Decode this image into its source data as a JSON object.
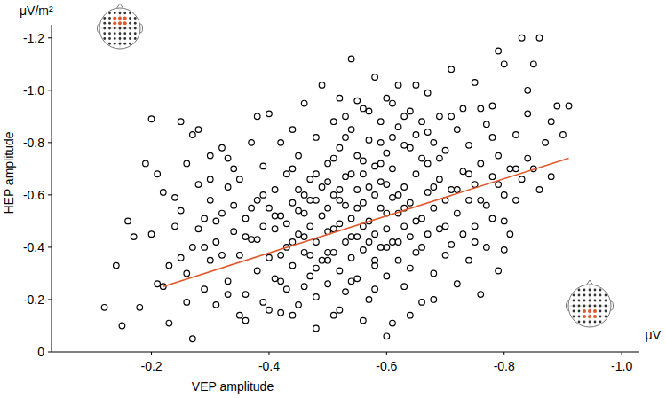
{
  "chart_data": {
    "type": "scatter",
    "x_label": "VEP amplitude",
    "y_label": "HEP amplitude",
    "x_unit": "μV",
    "y_unit": "μV/m²",
    "xlim": [
      -0.03,
      -1.03
    ],
    "ylim": [
      0,
      -1.25
    ],
    "xticks": [
      -0.2,
      -0.4,
      -0.6,
      -0.8,
      {
        "value": -1,
        "label": "-1.0"
      }
    ],
    "yticks": [
      0,
      -0.2,
      -0.4,
      -0.6,
      -0.8,
      {
        "value": -1,
        "label": "-1.0"
      },
      -1.2
    ],
    "grid": false,
    "series": [
      {
        "type": "scatter",
        "color": "#000000",
        "marker": "circle-open",
        "x": [
          -0.12,
          -0.15,
          -0.16,
          -0.17,
          -0.18,
          -0.19,
          -0.2,
          -0.21,
          -0.22,
          -0.14,
          -0.2,
          -0.21,
          -0.22,
          -0.23,
          -0.24,
          -0.25,
          -0.25,
          -0.26,
          -0.27,
          -0.27,
          -0.23,
          -0.24,
          -0.26,
          -0.27,
          -0.28,
          -0.28,
          -0.29,
          -0.29,
          -0.3,
          -0.3,
          -0.3,
          -0.31,
          -0.31,
          -0.32,
          -0.32,
          -0.33,
          -0.33,
          -0.34,
          -0.34,
          -0.35,
          -0.35,
          -0.35,
          -0.36,
          -0.36,
          -0.37,
          -0.37,
          -0.38,
          -0.38,
          -0.38,
          -0.39,
          -0.39,
          -0.39,
          -0.4,
          -0.4,
          -0.4,
          -0.41,
          -0.41,
          -0.41,
          -0.42,
          -0.42,
          -0.42,
          -0.43,
          -0.43,
          -0.43,
          -0.44,
          -0.44,
          -0.44,
          -0.45,
          -0.45,
          -0.45,
          -0.45,
          -0.46,
          -0.46,
          -0.46,
          -0.47,
          -0.47,
          -0.47,
          -0.48,
          -0.48,
          -0.48,
          -0.48,
          -0.49,
          -0.49,
          -0.49,
          -0.5,
          -0.5,
          -0.5,
          -0.5,
          -0.51,
          -0.51,
          -0.51,
          -0.51,
          -0.52,
          -0.52,
          -0.52,
          -0.52,
          -0.53,
          -0.53,
          -0.53,
          -0.53,
          -0.54,
          -0.54,
          -0.54,
          -0.54,
          -0.55,
          -0.55,
          -0.55,
          -0.55,
          -0.56,
          -0.56,
          -0.56,
          -0.56,
          -0.57,
          -0.57,
          -0.57,
          -0.57,
          -0.58,
          -0.58,
          -0.58,
          -0.58,
          -0.59,
          -0.59,
          -0.59,
          -0.59,
          -0.6,
          -0.6,
          -0.6,
          -0.6,
          -0.61,
          -0.61,
          -0.61,
          -0.61,
          -0.62,
          -0.62,
          -0.62,
          -0.62,
          -0.63,
          -0.63,
          -0.63,
          -0.63,
          -0.64,
          -0.64,
          -0.64,
          -0.65,
          -0.65,
          -0.65,
          -0.66,
          -0.66,
          -0.66,
          -0.67,
          -0.67,
          -0.67,
          -0.68,
          -0.68,
          -0.68,
          -0.69,
          -0.69,
          -0.69,
          -0.7,
          -0.7,
          -0.7,
          -0.71,
          -0.71,
          -0.71,
          -0.72,
          -0.72,
          -0.72,
          -0.73,
          -0.73,
          -0.73,
          -0.74,
          -0.74,
          -0.74,
          -0.75,
          -0.75,
          -0.75,
          -0.76,
          -0.76,
          -0.77,
          -0.77,
          -0.77,
          -0.78,
          -0.78,
          -0.78,
          -0.79,
          -0.79,
          -0.8,
          -0.8,
          -0.81,
          -0.81,
          -0.82,
          -0.82,
          -0.83,
          -0.83,
          -0.84,
          -0.84,
          -0.85,
          -0.86,
          -0.87,
          -0.88,
          -0.89,
          -0.9,
          -0.91,
          -0.86,
          -0.84,
          -0.8,
          -0.79,
          -0.76,
          -0.85,
          -0.88,
          -0.4,
          -0.44,
          -0.48,
          -0.52,
          -0.56,
          -0.6,
          -0.64,
          -0.68,
          -0.36,
          -0.33,
          -0.46,
          -0.47,
          -0.49,
          -0.5,
          -0.51,
          -0.53,
          -0.54,
          -0.55,
          -0.57,
          -0.58,
          -0.59,
          -0.6,
          -0.61,
          -0.62,
          -0.63,
          -0.64,
          -0.65,
          -0.66,
          -0.67,
          -0.68,
          -0.37,
          -0.38,
          -0.39,
          -0.41,
          -0.42,
          -0.43,
          -0.44,
          -0.45,
          -0.46,
          -0.47,
          -0.29,
          -0.31,
          -0.32,
          -0.34,
          -0.36,
          -0.28,
          -0.3,
          -0.26,
          -0.25,
          -0.33,
          -0.7,
          -0.72,
          -0.74,
          -0.76,
          -0.78,
          -0.8,
          -0.82,
          -0.71,
          -0.75,
          -0.79,
          -0.48,
          -0.5,
          -0.52,
          -0.54,
          -0.56,
          -0.58,
          -0.6,
          -0.62,
          -0.64,
          -0.66,
          -0.51,
          -0.53,
          -0.55,
          -0.57,
          -0.59,
          -0.61,
          -0.63,
          -0.65,
          -0.67,
          -0.69,
          -0.42,
          -0.44,
          -0.46,
          -0.48,
          -0.5,
          -0.52,
          -0.54,
          -0.56,
          -0.58,
          -0.6
        ],
        "values": [
          -0.17,
          -0.1,
          -0.5,
          -0.44,
          -0.17,
          -0.72,
          -0.89,
          -0.26,
          -0.61,
          -0.33,
          -0.45,
          -0.68,
          -0.25,
          -0.33,
          -0.48,
          -0.88,
          -0.54,
          -0.19,
          -0.83,
          -0.4,
          -0.11,
          -0.59,
          -0.3,
          -0.05,
          -0.64,
          -0.47,
          -0.24,
          -0.51,
          -0.35,
          -0.75,
          -0.58,
          -0.42,
          -0.18,
          -0.78,
          -0.53,
          -0.27,
          -0.63,
          -0.46,
          -0.7,
          -0.14,
          -0.37,
          -0.66,
          -0.51,
          -0.22,
          -0.8,
          -0.43,
          -0.58,
          -0.31,
          -0.9,
          -0.48,
          -0.19,
          -0.71,
          -0.55,
          -0.36,
          -0.91,
          -0.62,
          -0.28,
          -0.47,
          -0.8,
          -0.15,
          -0.52,
          -0.4,
          -0.68,
          -0.24,
          -0.57,
          -0.85,
          -0.33,
          -0.62,
          -0.45,
          -0.18,
          -0.75,
          -0.38,
          -0.53,
          -0.95,
          -0.29,
          -0.66,
          -0.48,
          -0.58,
          -0.21,
          -0.82,
          -0.42,
          -0.63,
          -0.35,
          -1.02,
          -0.55,
          -0.26,
          -0.72,
          -0.46,
          -0.88,
          -0.38,
          -0.6,
          -0.14,
          -0.49,
          -0.78,
          -0.31,
          -0.97,
          -0.56,
          -0.42,
          -0.67,
          -0.23,
          -0.51,
          -0.85,
          -0.36,
          -1.12,
          -0.62,
          -0.44,
          -0.75,
          -0.28,
          -0.57,
          -0.93,
          -0.39,
          -0.68,
          -0.5,
          -0.2,
          -0.81,
          -0.63,
          -0.45,
          -1.05,
          -0.71,
          -0.33,
          -0.55,
          -0.88,
          -0.4,
          -0.65,
          -0.47,
          -0.76,
          -0.29,
          -0.97,
          -0.59,
          -0.11,
          -0.7,
          -0.42,
          -0.53,
          -0.86,
          -0.35,
          -1.02,
          -0.63,
          -0.48,
          -0.79,
          -0.25,
          -0.57,
          -0.92,
          -0.44,
          -0.68,
          -0.38,
          -0.83,
          -0.51,
          -0.74,
          -0.19,
          -0.61,
          -0.99,
          -0.45,
          -0.55,
          -0.8,
          -0.3,
          -0.66,
          -0.47,
          -0.9,
          -0.58,
          -0.37,
          -0.77,
          -0.62,
          -0.41,
          -1.08,
          -0.53,
          -0.85,
          -0.26,
          -0.69,
          -0.45,
          -0.93,
          -0.58,
          -0.35,
          -0.79,
          -0.64,
          -1.03,
          -0.48,
          -0.72,
          -0.22,
          -0.56,
          -0.87,
          -0.4,
          -0.67,
          -0.94,
          -0.51,
          -0.75,
          -0.31,
          -0.6,
          -1.1,
          -0.7,
          -0.45,
          -0.83,
          -0.58,
          -1.2,
          -0.66,
          -0.91,
          -0.74,
          -1.1,
          -0.62,
          -0.8,
          -0.88,
          -0.94,
          -0.83,
          -0.94,
          -1.2,
          -1.0,
          -0.39,
          -1.15,
          -0.93,
          -0.7,
          -0.67,
          -0.16,
          -0.14,
          -0.09,
          -0.16,
          -0.12,
          -0.06,
          -0.14,
          -0.2,
          -0.12,
          -0.22,
          -0.6,
          -0.37,
          -0.52,
          -0.65,
          -0.47,
          -0.9,
          -0.68,
          -0.55,
          -0.42,
          -0.6,
          -0.72,
          -0.53,
          -0.82,
          -0.6,
          -0.55,
          -0.78,
          -0.5,
          -0.88,
          -0.72,
          -0.63,
          -0.55,
          -0.43,
          -0.6,
          -0.52,
          -0.37,
          -0.49,
          -0.7,
          -0.54,
          -0.44,
          -0.58,
          -0.4,
          -0.5,
          -0.37,
          -0.56,
          -0.44,
          -0.85,
          -0.66,
          -0.72,
          -0.36,
          -0.74,
          -0.48,
          -0.62,
          -0.68,
          -0.58,
          -0.82,
          -0.5,
          -0.7,
          -0.9,
          -0.42,
          -0.64,
          -0.32,
          -0.38,
          -0.58,
          -0.44,
          -0.48,
          -0.35,
          -0.64,
          -0.42,
          -0.32,
          -0.4,
          -0.74,
          -0.82,
          -0.96,
          -0.92,
          -0.8,
          -0.95,
          -0.9,
          -1.02,
          -0.84,
          -0.74,
          -0.27,
          -0.42,
          -0.25,
          -0.68,
          -0.35,
          -0.62,
          -0.27,
          -0.73,
          -0.24,
          -0.4
        ]
      },
      {
        "type": "line",
        "color": "#e0582c",
        "line_style": "solid",
        "x": [
          -0.22,
          -0.91
        ],
        "values": [
          -0.25,
          -0.74
        ]
      }
    ]
  }
}
